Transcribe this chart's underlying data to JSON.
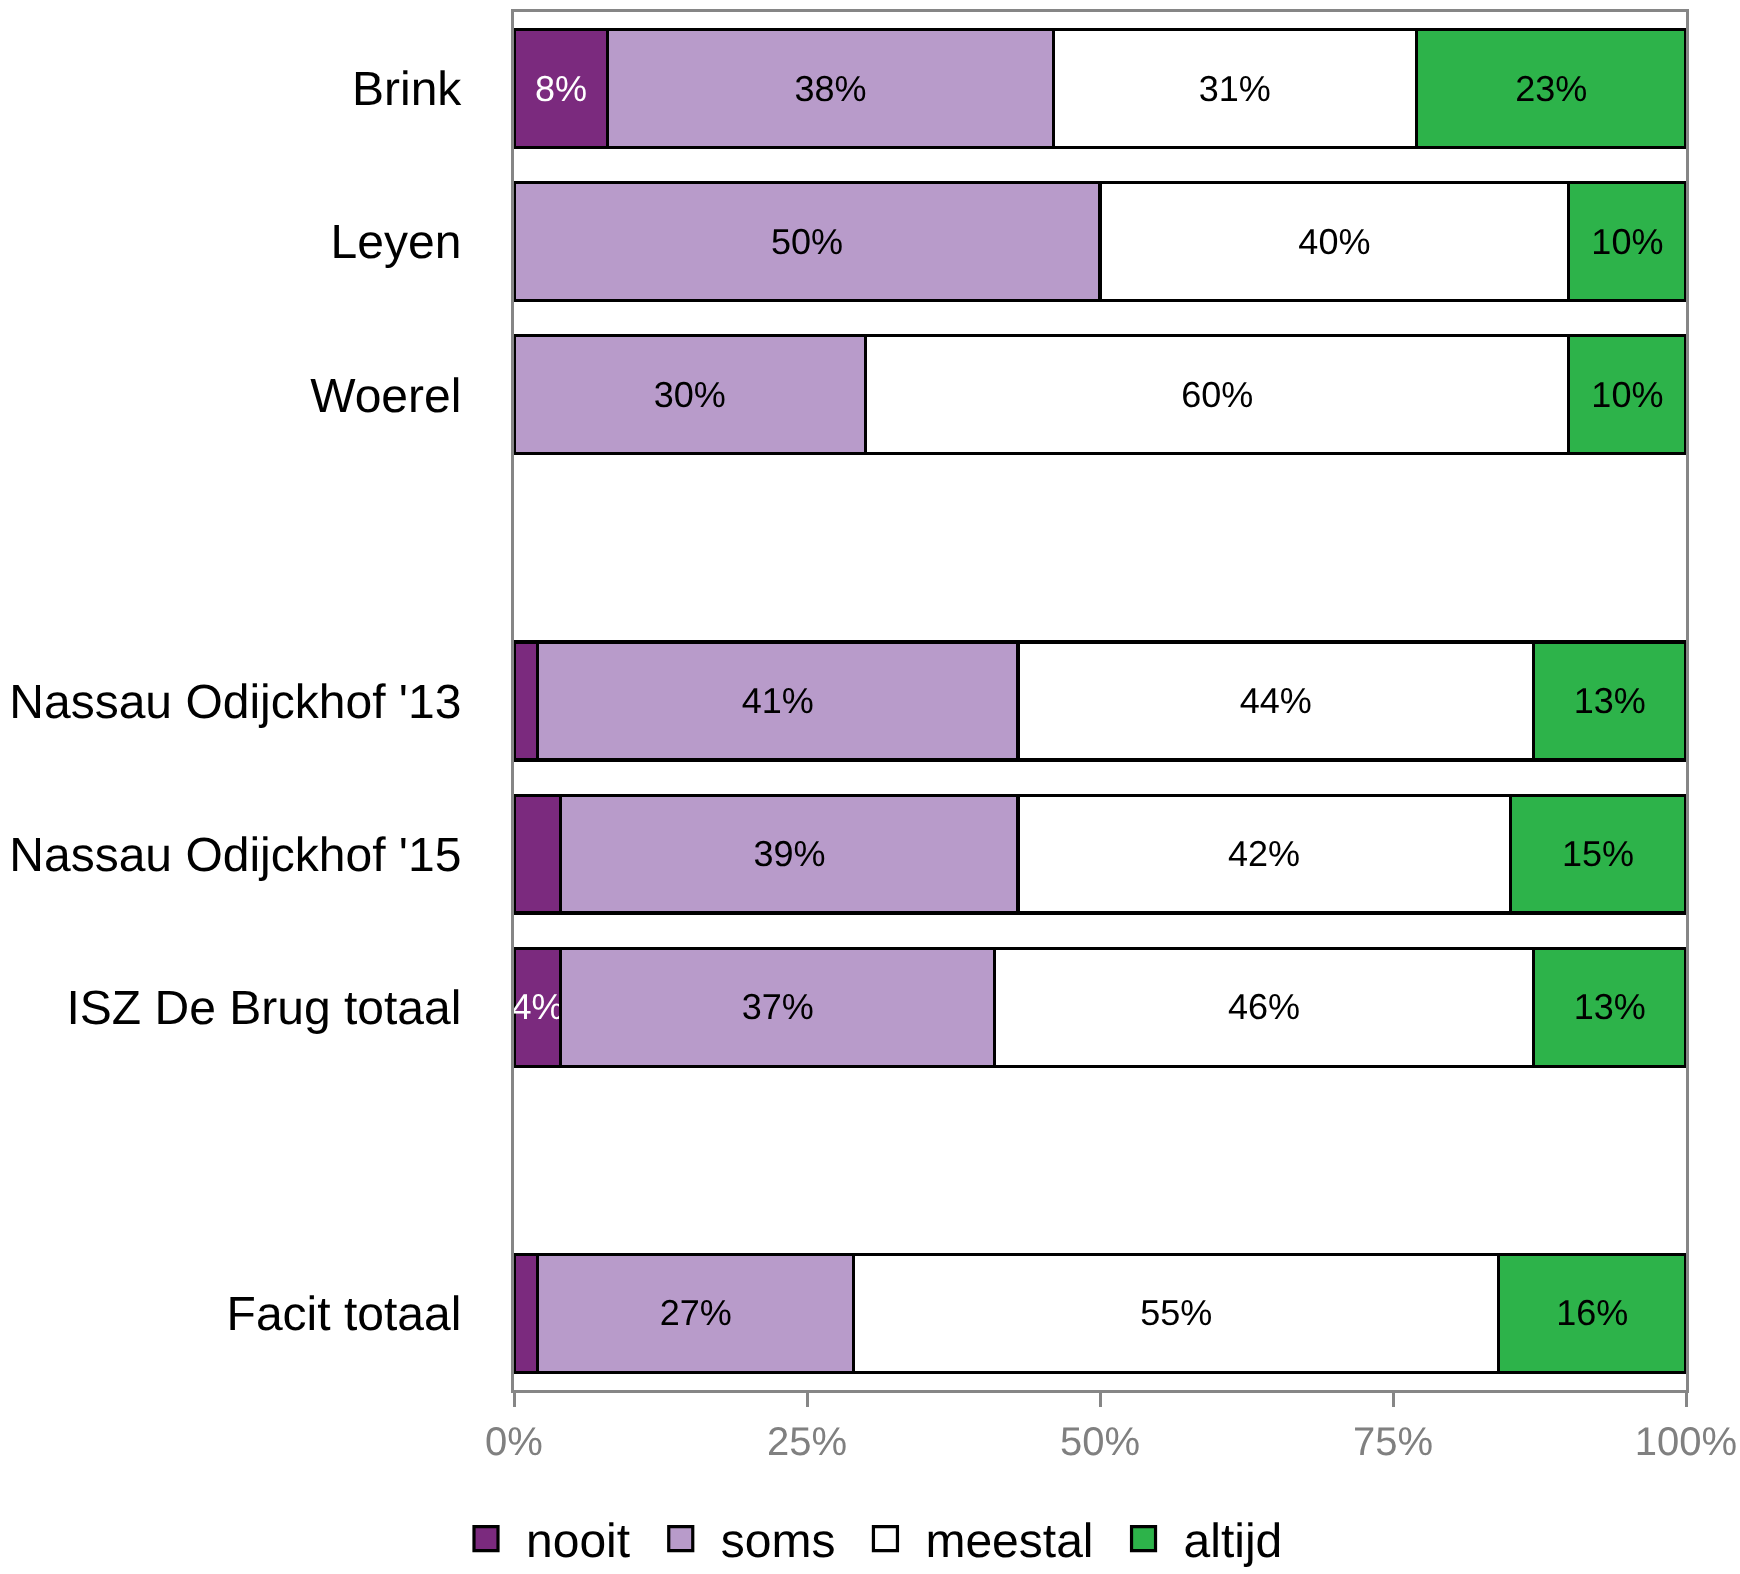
{
  "chart_data": {
    "type": "bar",
    "orientation": "horizontal",
    "stacked": true,
    "categories": [
      "Brink",
      "Leyen",
      "Woerel",
      null,
      "Nassau Odijckhof '13",
      "Nassau Odijckhof '15",
      "ISZ De Brug totaal",
      null,
      "Facit totaal"
    ],
    "series": [
      {
        "name": "nooit",
        "color": "#7b2a7e",
        "values": [
          8,
          null,
          null,
          null,
          2,
          4,
          4,
          null,
          2
        ],
        "value_labels": [
          "8%",
          null,
          null,
          null,
          null,
          null,
          "4%",
          null,
          null
        ]
      },
      {
        "name": "soms",
        "color": "#b89bca",
        "values": [
          38,
          50,
          30,
          null,
          41,
          39,
          37,
          null,
          27
        ],
        "value_labels": [
          "38%",
          "50%",
          "30%",
          null,
          "41%",
          "39%",
          "37%",
          null,
          "27%"
        ]
      },
      {
        "name": "meestal",
        "color": "#ffffff",
        "values": [
          31,
          40,
          60,
          null,
          44,
          42,
          46,
          null,
          55
        ],
        "value_labels": [
          "31%",
          "40%",
          "60%",
          null,
          "44%",
          "42%",
          "46%",
          null,
          "55%"
        ]
      },
      {
        "name": "altijd",
        "color": "#2db34a",
        "values": [
          23,
          10,
          10,
          null,
          13,
          15,
          13,
          null,
          16
        ],
        "value_labels": [
          "23%",
          "10%",
          "10%",
          null,
          "13%",
          "15%",
          "13%",
          null,
          "16%"
        ]
      }
    ],
    "xlim": [
      0,
      100
    ],
    "xticks": [
      {
        "value": 0,
        "label": "0%"
      },
      {
        "value": 25,
        "label": "25%"
      },
      {
        "value": 50,
        "label": "50%"
      },
      {
        "value": 75,
        "label": "75%"
      },
      {
        "value": 100,
        "label": "100%"
      }
    ],
    "legend": "bottom"
  }
}
